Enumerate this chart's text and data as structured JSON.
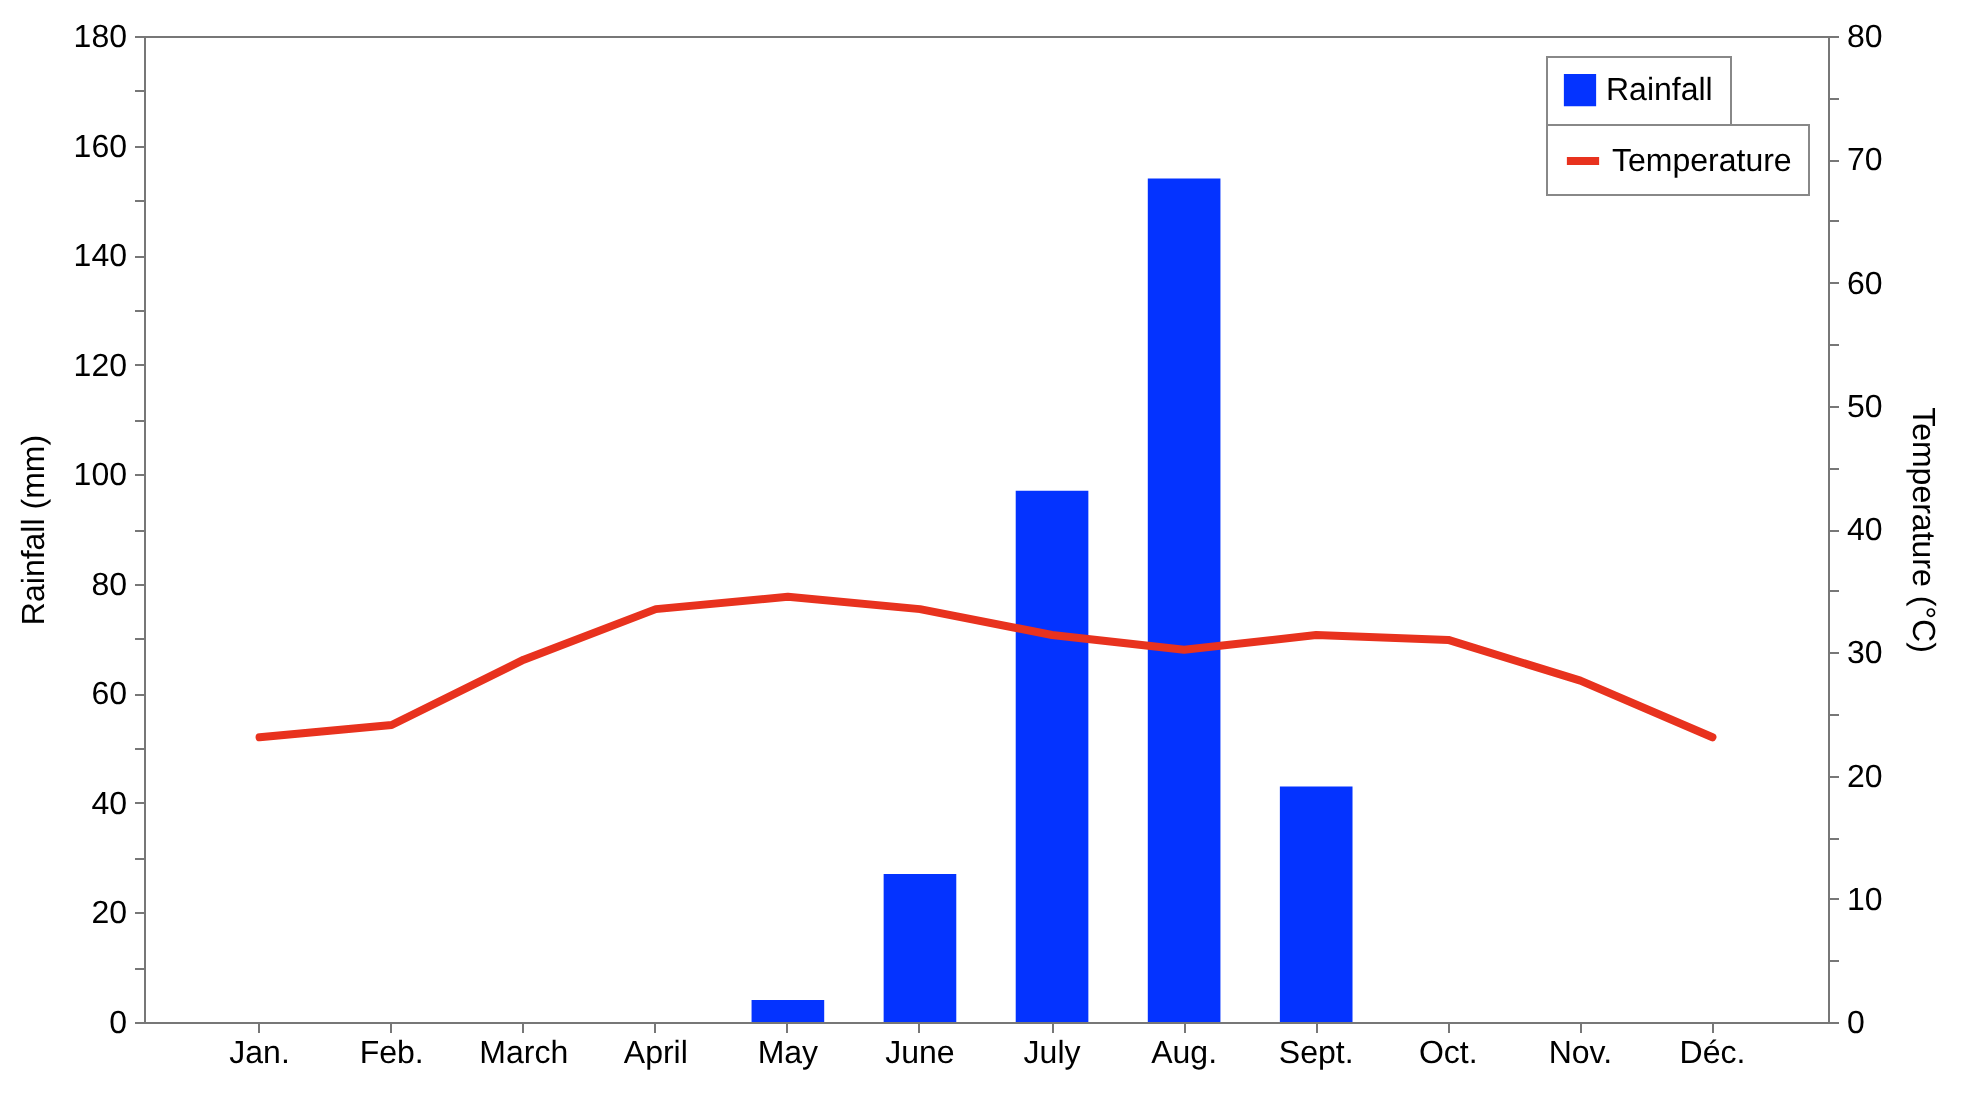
{
  "chart_data": {
    "type": "bar",
    "categories": [
      "Jan.",
      "Feb.",
      "March",
      "April",
      "May",
      "June",
      "July",
      "Aug.",
      "Sept.",
      "Oct.",
      "Nov.",
      "Déc."
    ],
    "ylabel": "Rainfall (mm)",
    "y2label": "Temperature (°C)",
    "ylim": [
      0,
      180
    ],
    "yticks": [
      0,
      {
        "value": 10,
        "label": null
      },
      20,
      {
        "value": 30,
        "label": null
      },
      40,
      {
        "value": 50,
        "label": null
      },
      60,
      {
        "value": 70,
        "label": null
      },
      80,
      {
        "value": 90,
        "label": null
      },
      100,
      {
        "value": 110,
        "label": null
      },
      120,
      {
        "value": 130,
        "label": null
      },
      140,
      {
        "value": 150,
        "label": null
      },
      160,
      {
        "value": 170,
        "label": null
      },
      180
    ],
    "y2lim": [
      0,
      80
    ],
    "y2ticks": [
      0,
      {
        "value": 5,
        "label": null
      },
      10,
      {
        "value": 15,
        "label": null
      },
      20,
      {
        "value": 25,
        "label": null
      },
      30,
      {
        "value": 35,
        "label": null
      },
      40,
      {
        "value": 45,
        "label": null
      },
      50,
      {
        "value": 55,
        "label": null
      },
      60,
      {
        "value": 65,
        "label": null
      },
      70,
      {
        "value": 75,
        "label": null
      },
      80
    ],
    "legend": "top right",
    "grid": false,
    "series": [
      {
        "name": "Rainfall",
        "color": "#0433ff",
        "values": [
          null,
          null,
          null,
          null,
          4,
          27,
          97,
          154,
          43,
          null,
          null,
          null
        ]
      },
      {
        "name": "Temperature",
        "type": "line",
        "axis": "y2",
        "color": "#e8321e",
        "values": [
          23.1,
          24.1,
          29.4,
          33.5,
          34.5,
          33.5,
          31.4,
          30.2,
          31.4,
          31.0,
          27.7,
          23.1
        ]
      }
    ]
  }
}
